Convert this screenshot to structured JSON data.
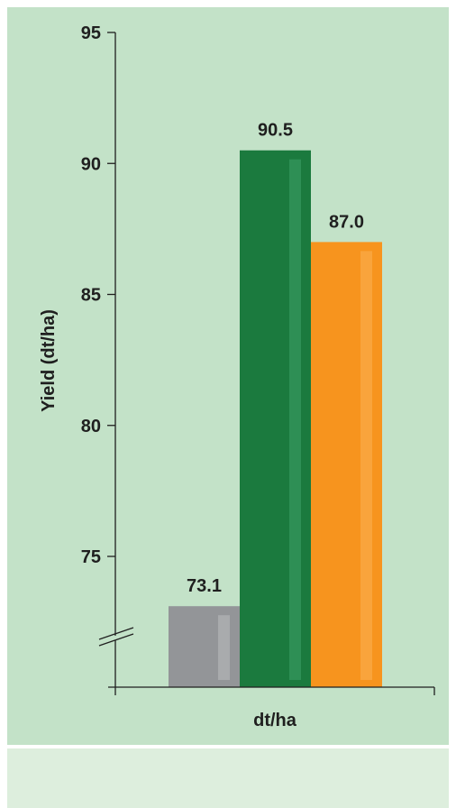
{
  "chart_data": {
    "type": "bar",
    "title": "",
    "xlabel": "dt/ha",
    "ylabel": "Yield (dt/ha)",
    "ylim": [
      70,
      95
    ],
    "yticks": [
      75,
      80,
      85,
      90,
      95
    ],
    "axis_break": true,
    "grid": false,
    "categories": [
      "",
      "",
      ""
    ],
    "values": [
      73.1,
      90.5,
      87.0
    ],
    "value_labels": [
      "73.1",
      "90.5",
      "87.0"
    ],
    "colors": [
      "#939598",
      "#1b7a3e",
      "#f7941e"
    ],
    "highlight_colors": [
      "#a9abad",
      "#2e8f55",
      "#f9a43c"
    ],
    "background": "#c3e2c8",
    "footer_background": "#ddeedd"
  }
}
